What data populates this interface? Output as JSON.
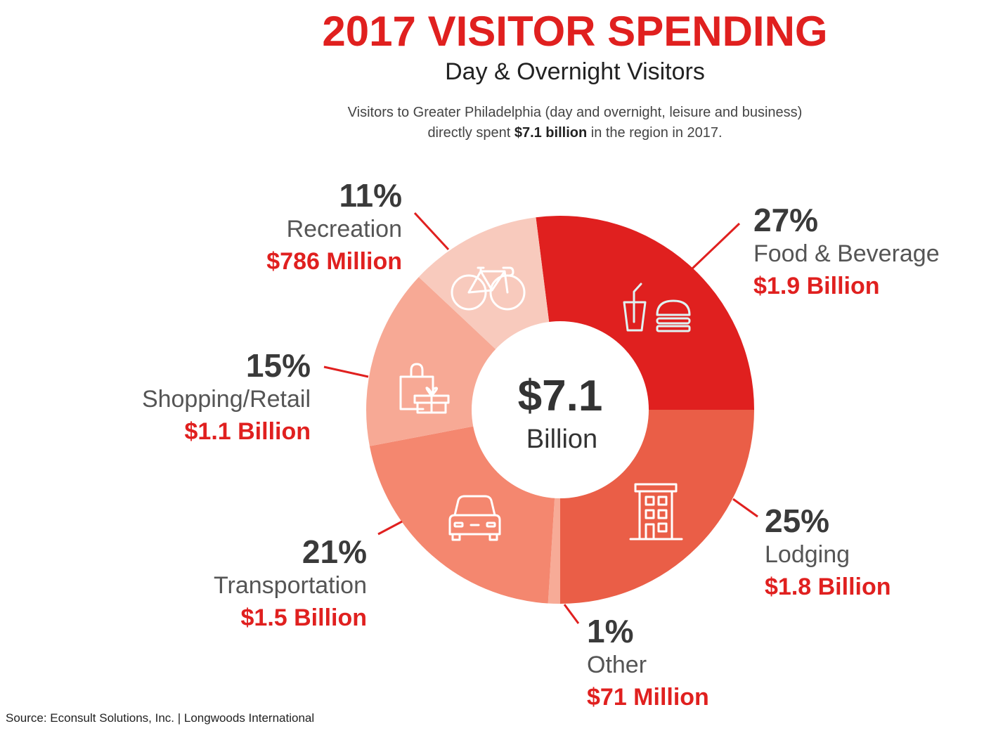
{
  "header": {
    "title": "2017 VISITOR SPENDING",
    "subtitle": "Day & Overnight Visitors",
    "description_line1": "Visitors to Greater Philadelphia (day and overnight, leisure and business)",
    "description_line2_pre": "directly spent ",
    "description_line2_bold": "$7.1 billion",
    "description_line2_post": " in the region in 2017."
  },
  "center": {
    "value": "$7.1",
    "unit": "Billion"
  },
  "segments": [
    {
      "pct": "27%",
      "category": "Food & Beverage",
      "amount": "$1.9 Billion",
      "color": "#e0201f",
      "icon": "food-beverage-icon"
    },
    {
      "pct": "25%",
      "category": "Lodging",
      "amount": "$1.8 Billion",
      "color": "#ea5e47",
      "icon": "hotel-building-icon"
    },
    {
      "pct": "1%",
      "category": "Other",
      "amount": "$71 Million",
      "color": "#f7ab97",
      "icon": ""
    },
    {
      "pct": "21%",
      "category": "Transportation",
      "amount": "$1.5 Billion",
      "color": "#f4876f",
      "icon": "car-icon"
    },
    {
      "pct": "15%",
      "category": "Shopping/Retail",
      "amount": "$1.1 Billion",
      "color": "#f7a995",
      "icon": "shopping-bag-gift-icon"
    },
    {
      "pct": "11%",
      "category": "Recreation",
      "amount": "$786 Million",
      "color": "#f8cabd",
      "icon": "bicycle-icon"
    }
  ],
  "source": "Source: Econsult Solutions, Inc. | Longwoods International",
  "chart_data": {
    "type": "pie",
    "variant": "donut",
    "title": "2017 VISITOR SPENDING",
    "subtitle": "Day & Overnight Visitors",
    "total": "$7.1 Billion",
    "categories": [
      "Food & Beverage",
      "Lodging",
      "Other",
      "Transportation",
      "Shopping/Retail",
      "Recreation"
    ],
    "values": [
      27,
      25,
      1,
      21,
      15,
      11
    ],
    "amounts": [
      "$1.9 Billion",
      "$1.8 Billion",
      "$71 Million",
      "$1.5 Billion",
      "$1.1 Billion",
      "$786 Million"
    ],
    "unit": "%",
    "colors": [
      "#e0201f",
      "#ea5e47",
      "#f7ab97",
      "#f4876f",
      "#f7a995",
      "#f8cabd"
    ],
    "legend": "none (direct labels with leader lines)"
  }
}
